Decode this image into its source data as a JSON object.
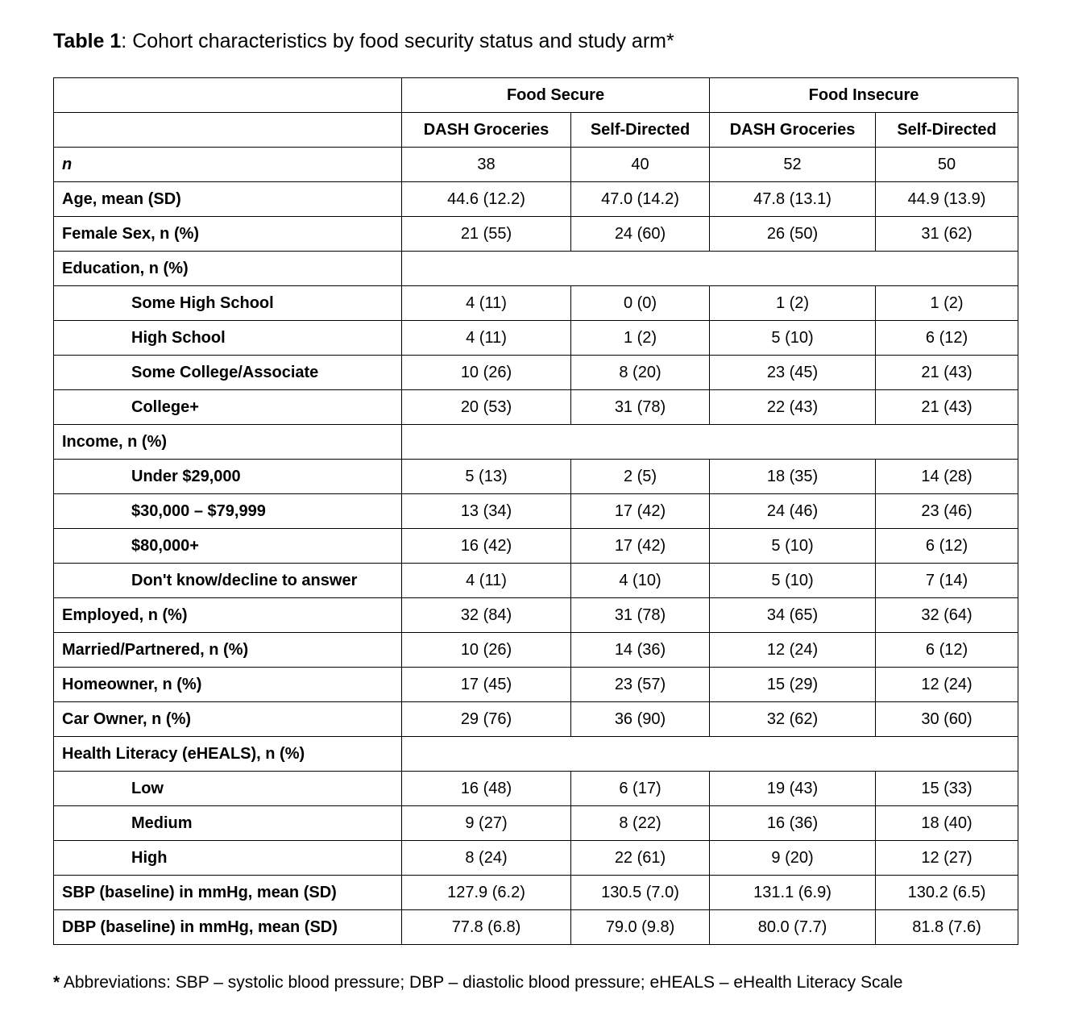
{
  "title": {
    "bold": "Table 1",
    "rest": ": Cohort characteristics by food security status and study arm*"
  },
  "table": {
    "group_headers": [
      "Food Secure",
      "Food Insecure"
    ],
    "col_headers": [
      "DASH Groceries",
      "Self-Directed",
      "DASH Groceries",
      "Self-Directed"
    ],
    "rows": [
      {
        "label": "n",
        "type": "italic",
        "values": [
          "38",
          "40",
          "52",
          "50"
        ]
      },
      {
        "label": "Age, mean (SD)",
        "type": "normal",
        "values": [
          "44.6 (12.2)",
          "47.0 (14.2)",
          "47.8 (13.1)",
          "44.9 (13.9)"
        ]
      },
      {
        "label": "Female Sex, n (%)",
        "type": "normal",
        "values": [
          "21 (55)",
          "24 (60)",
          "26 (50)",
          "31 (62)"
        ]
      },
      {
        "label": "Education, n (%)",
        "type": "section",
        "values": null
      },
      {
        "label": "Some High School",
        "type": "sub",
        "values": [
          "4 (11)",
          "0 (0)",
          "1 (2)",
          "1 (2)"
        ]
      },
      {
        "label": "High School",
        "type": "sub",
        "values": [
          "4 (11)",
          "1 (2)",
          "5 (10)",
          "6 (12)"
        ]
      },
      {
        "label": "Some College/Associate",
        "type": "sub",
        "values": [
          "10 (26)",
          "8 (20)",
          "23 (45)",
          "21 (43)"
        ]
      },
      {
        "label": "College+",
        "type": "sub",
        "values": [
          "20 (53)",
          "31 (78)",
          "22 (43)",
          "21 (43)"
        ]
      },
      {
        "label": "Income, n (%)",
        "type": "section",
        "values": null
      },
      {
        "label": "Under $29,000",
        "type": "sub",
        "values": [
          "5 (13)",
          "2 (5)",
          "18 (35)",
          "14 (28)"
        ]
      },
      {
        "label": "$30,000 – $79,999",
        "type": "sub",
        "values": [
          "13 (34)",
          "17 (42)",
          "24 (46)",
          "23 (46)"
        ]
      },
      {
        "label": "$80,000+",
        "type": "sub",
        "values": [
          "16 (42)",
          "17 (42)",
          "5 (10)",
          "6 (12)"
        ]
      },
      {
        "label": "Don't know/decline to answer",
        "type": "sub",
        "values": [
          "4 (11)",
          "4 (10)",
          "5 (10)",
          "7 (14)"
        ]
      },
      {
        "label": "Employed, n (%)",
        "type": "normal",
        "values": [
          "32 (84)",
          "31 (78)",
          "34 (65)",
          "32 (64)"
        ]
      },
      {
        "label": "Married/Partnered, n (%)",
        "type": "normal",
        "values": [
          "10 (26)",
          "14 (36)",
          "12 (24)",
          "6 (12)"
        ]
      },
      {
        "label": "Homeowner, n (%)",
        "type": "normal",
        "values": [
          "17 (45)",
          "23 (57)",
          "15 (29)",
          "12 (24)"
        ]
      },
      {
        "label": "Car Owner, n (%)",
        "type": "normal",
        "values": [
          "29 (76)",
          "36 (90)",
          "32 (62)",
          "30 (60)"
        ]
      },
      {
        "label": "Health Literacy (eHEALS), n (%)",
        "type": "section",
        "values": null
      },
      {
        "label": "Low",
        "type": "sub",
        "values": [
          "16 (48)",
          "6 (17)",
          "19 (43)",
          "15 (33)"
        ]
      },
      {
        "label": "Medium",
        "type": "sub",
        "values": [
          "9 (27)",
          "8 (22)",
          "16 (36)",
          "18 (40)"
        ]
      },
      {
        "label": "High",
        "type": "sub",
        "values": [
          "8 (24)",
          "22 (61)",
          "9 (20)",
          "12 (27)"
        ]
      },
      {
        "label": "SBP (baseline) in mmHg, mean (SD)",
        "type": "normal",
        "values": [
          "127.9 (6.2)",
          "130.5 (7.0)",
          "131.1 (6.9)",
          "130.2 (6.5)"
        ]
      },
      {
        "label": "DBP (baseline) in mmHg, mean (SD)",
        "type": "normal",
        "values": [
          "77.8 (6.8)",
          "79.0 (9.8)",
          "80.0 (7.7)",
          "81.8 (7.6)"
        ]
      }
    ]
  },
  "footnote": {
    "marker": "*",
    "text": " Abbreviations: SBP – systolic blood pressure; DBP – diastolic blood pressure; eHEALS – eHealth Literacy Scale"
  }
}
